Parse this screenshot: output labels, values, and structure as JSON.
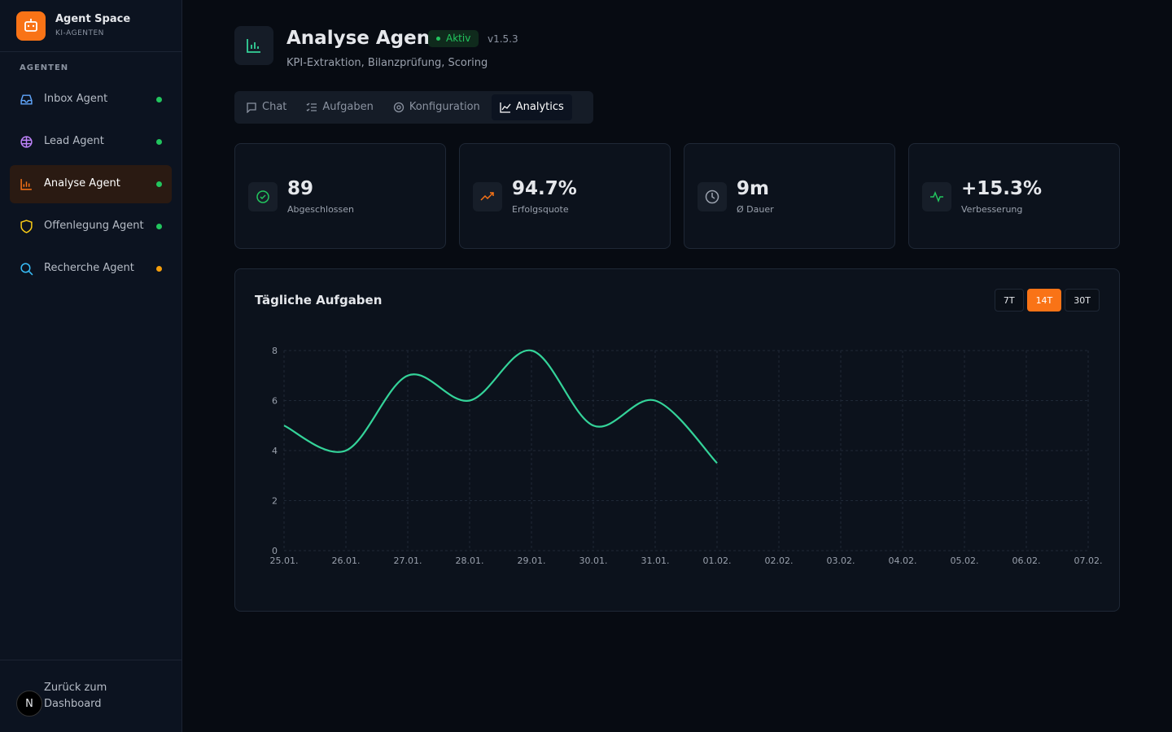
{
  "sidebar": {
    "brand": "Agent Space",
    "subtitle": "KI-AGENTEN",
    "section": "AGENTEN",
    "agents": [
      {
        "name": "Inbox Agent",
        "status_color": "#22c55e"
      },
      {
        "name": "Lead Agent",
        "status_color": "#22c55e"
      },
      {
        "name": "Analyse Agent",
        "status_color": "#22c55e"
      },
      {
        "name": "Offenlegung Agent",
        "status_color": "#22c55e"
      },
      {
        "name": "Recherche Agent",
        "status_color": "#f59e0b"
      }
    ],
    "back": "Zurück zum Dashboard",
    "avatar": "N"
  },
  "header": {
    "title": "Analyse Agent",
    "status": "Aktiv",
    "version": "v1.5.3",
    "description": "KPI-Extraktion, Bilanzprüfung, Scoring"
  },
  "tabs": [
    "Chat",
    "Aufgaben",
    "Konfiguration",
    "Analytics"
  ],
  "stats": [
    {
      "value": "89",
      "label": "Abgeschlossen"
    },
    {
      "value": "94.7%",
      "label": "Erfolgsquote"
    },
    {
      "value": "9m",
      "label": "Ø Dauer"
    },
    {
      "value": "+15.3%",
      "label": "Verbesserung"
    }
  ],
  "chart_data": {
    "type": "line",
    "title": "Tägliche Aufgaben",
    "ranges": [
      "7T",
      "14T",
      "30T"
    ],
    "categories": [
      "25.01.",
      "26.01.",
      "27.01.",
      "28.01.",
      "29.01.",
      "30.01.",
      "31.01.",
      "01.02.",
      "02.02.",
      "03.02.",
      "04.02.",
      "05.02.",
      "06.02.",
      "07.02."
    ],
    "values": [
      5,
      4,
      7,
      6,
      8,
      5,
      6,
      3.5,
      null,
      null,
      null,
      null,
      null,
      null
    ],
    "color": "#34d399",
    "ylim": [
      0,
      8
    ],
    "yticks": [
      0,
      2,
      4,
      6,
      8
    ],
    "grid": true
  }
}
